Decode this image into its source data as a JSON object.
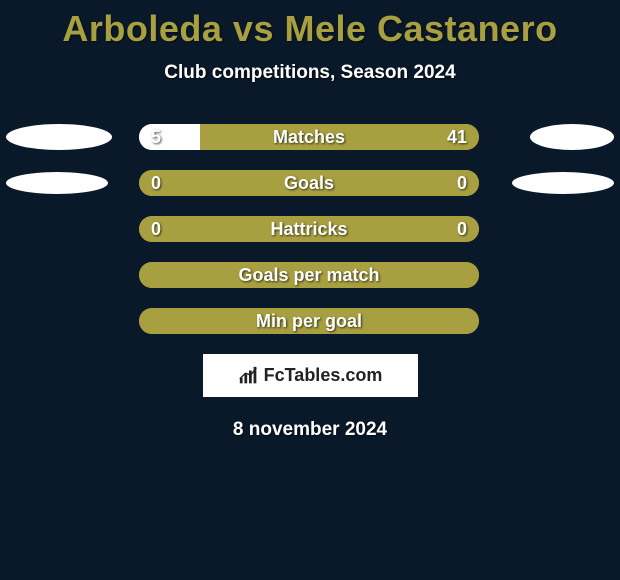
{
  "title": "Arboleda vs Mele Castanero",
  "subtitle": "Club competitions, Season 2024",
  "date": "8 november 2024",
  "logo_text": "FcTables.com",
  "colors": {
    "background": "#0a1929",
    "bar_color": "#a8a040",
    "bar_fill": "#ffffff",
    "text_color": "#ffffff",
    "title_color": "#a8a040",
    "logo_bg": "#ffffff",
    "logo_text_color": "#222222"
  },
  "ellipse_rows": [
    0,
    1
  ],
  "ellipses": {
    "row0_left": {
      "width": 106,
      "height": 26
    },
    "row0_right": {
      "width": 84,
      "height": 26
    },
    "row1_left": {
      "width": 102,
      "height": 22
    },
    "row1_right": {
      "width": 102,
      "height": 22
    }
  },
  "bars": [
    {
      "label": "Matches",
      "left_value": "5",
      "right_value": "41",
      "left_fill_pct": 18,
      "right_fill_pct": 0,
      "show_left": true,
      "show_right": true
    },
    {
      "label": "Goals",
      "left_value": "0",
      "right_value": "0",
      "left_fill_pct": 0,
      "right_fill_pct": 0,
      "show_left": true,
      "show_right": true
    },
    {
      "label": "Hattricks",
      "left_value": "0",
      "right_value": "0",
      "left_fill_pct": 0,
      "right_fill_pct": 0,
      "show_left": true,
      "show_right": true
    },
    {
      "label": "Goals per match",
      "left_value": "",
      "right_value": "",
      "left_fill_pct": 0,
      "right_fill_pct": 0,
      "show_left": false,
      "show_right": false
    },
    {
      "label": "Min per goal",
      "left_value": "",
      "right_value": "",
      "left_fill_pct": 0,
      "right_fill_pct": 0,
      "show_left": false,
      "show_right": false
    }
  ]
}
